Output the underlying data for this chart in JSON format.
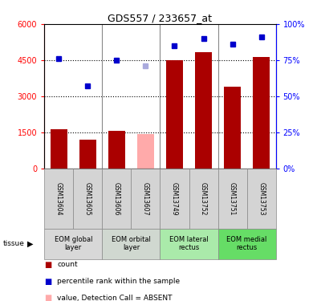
{
  "title": "GDS557 / 233657_at",
  "samples": [
    "GSM13604",
    "GSM13605",
    "GSM13606",
    "GSM13607",
    "GSM13749",
    "GSM13752",
    "GSM13751",
    "GSM13753"
  ],
  "bar_values": [
    1650,
    1200,
    1570,
    1450,
    4500,
    4850,
    3400,
    4620
  ],
  "bar_colors": [
    "#aa0000",
    "#aa0000",
    "#aa0000",
    "#ffaaaa",
    "#aa0000",
    "#aa0000",
    "#aa0000",
    "#aa0000"
  ],
  "rank_values": [
    76,
    57,
    75,
    71,
    85,
    90,
    86,
    91
  ],
  "rank_colors": [
    "#0000cc",
    "#0000cc",
    "#0000cc",
    "#aaaadd",
    "#0000cc",
    "#0000cc",
    "#0000cc",
    "#0000cc"
  ],
  "tissues": [
    "EOM global\nlayer",
    "EOM orbital\nlayer",
    "EOM lateral\nrectus",
    "EOM medial\nrectus"
  ],
  "tissue_group_colors": [
    "#d8d8d8",
    "#d0d8d0",
    "#aaeaaa",
    "#66dd66"
  ],
  "ylim_left": [
    0,
    6000
  ],
  "ylim_right": [
    0,
    100
  ],
  "left_ticks": [
    0,
    1500,
    3000,
    4500,
    6000
  ],
  "right_ticks": [
    0,
    25,
    50,
    75,
    100
  ],
  "bar_width": 0.6,
  "figsize": [
    3.95,
    3.75
  ],
  "dpi": 100
}
